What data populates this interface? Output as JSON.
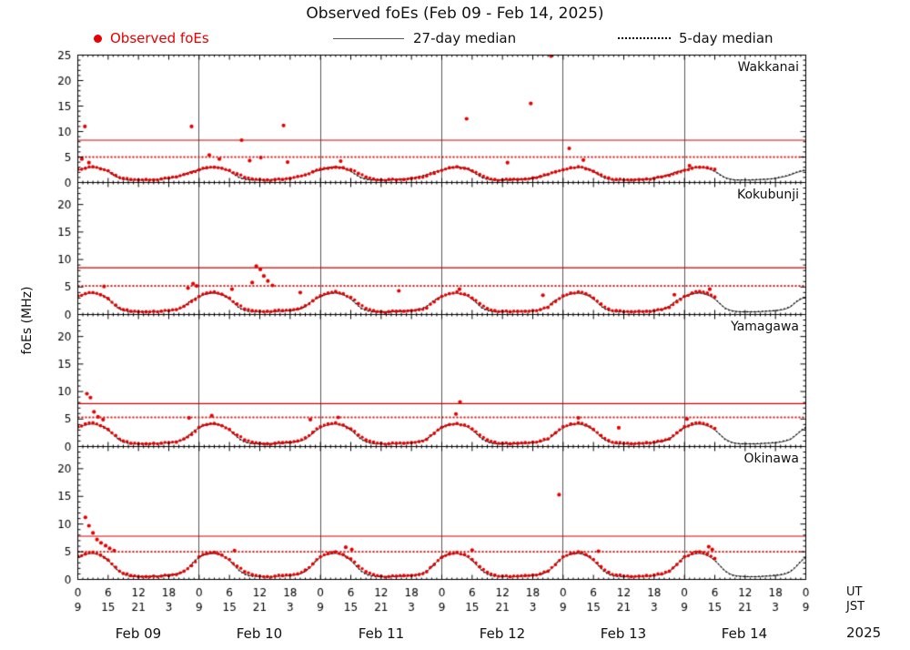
{
  "title": "Observed foEs (Feb 09 - Feb 14, 2025)",
  "ylabel": "foEs (MHz)",
  "legend": {
    "observed": "Observed foEs",
    "median27": "27-day median",
    "median5": "5-day median"
  },
  "axis": {
    "hours_total": 144,
    "ut_label": "UT",
    "jst_label": "JST",
    "year_label": "2025",
    "day_labels": [
      "Feb 09",
      "Feb 10",
      "Feb 11",
      "Feb 12",
      "Feb 13",
      "Feb 14"
    ],
    "x_tick_pairs": [
      [
        "0",
        "9"
      ],
      [
        "6",
        "15"
      ],
      [
        "12",
        "21"
      ],
      [
        "18",
        "3"
      ]
    ]
  },
  "colors": {
    "observed": "#e60000",
    "threshold": "#cc0000",
    "median27": "#444444",
    "median5": "#000000",
    "dayline": "#555555",
    "frame": "#000000"
  },
  "chart_data": {
    "type": "scatter",
    "title": "Observed foEs (Feb 09 - Feb 14, 2025)",
    "x_unit": "hours from Feb 09 00:00 UT",
    "y_unit": "MHz",
    "stations": [
      {
        "name": "Wakkanai",
        "ymax": 25,
        "yticks": [
          0,
          5,
          10,
          15,
          20,
          25
        ],
        "threshold_solid": 8.3,
        "threshold_dotted": 5.0,
        "median27_diurnal": [
          2.4,
          2.7,
          2.9,
          3.0,
          2.9,
          2.6,
          2.2,
          1.6,
          1.0,
          0.7,
          0.5,
          0.5,
          0.5,
          0.5,
          0.5,
          0.6,
          0.6,
          0.7,
          0.8,
          1.0,
          1.2,
          1.5,
          1.9,
          2.2
        ],
        "median5_diurnal": [
          2.5,
          2.8,
          3.0,
          3.1,
          3.0,
          2.7,
          2.2,
          1.5,
          0.9,
          0.6,
          0.5,
          0.5,
          0.5,
          0.5,
          0.6,
          0.6,
          0.7,
          0.7,
          0.9,
          1.1,
          1.3,
          1.6,
          2.0,
          2.3
        ],
        "observed": [
          0,
          2.6,
          1.5,
          2.8,
          3,
          3.1,
          4.5,
          2.7,
          6,
          2.3,
          7.5,
          1.4,
          9,
          0.8,
          10.5,
          0.6,
          12,
          0.5,
          13.5,
          0.6,
          15,
          0.5,
          16.5,
          0.7,
          18,
          0.9,
          19.5,
          1.1,
          21,
          1.6,
          22.5,
          2.0,
          24,
          2.5,
          25.5,
          2.9,
          27,
          3.0,
          28.5,
          2.8,
          30,
          2.4,
          31.5,
          1.7,
          33,
          1.0,
          34.5,
          0.7,
          36,
          0.6,
          37.5,
          0.5,
          39,
          0.6,
          40.5,
          0.6,
          42,
          0.8,
          43.5,
          1.2,
          45,
          1.5,
          46.5,
          2.1,
          48,
          2.6,
          49.5,
          2.8,
          51,
          3.0,
          52.5,
          2.9,
          54,
          2.5,
          55.5,
          1.8,
          57,
          1.1,
          58.5,
          0.7,
          60,
          0.5,
          61.5,
          0.6,
          63,
          0.5,
          64.5,
          0.6,
          66,
          0.8,
          67.5,
          1.0,
          69,
          1.3,
          70.5,
          1.8,
          72,
          2.4,
          73.5,
          2.9,
          75,
          3.1,
          76.5,
          2.8,
          78,
          2.3,
          79.5,
          1.6,
          81,
          0.9,
          82.5,
          0.6,
          84,
          0.5,
          85.5,
          0.6,
          87,
          0.6,
          88.5,
          0.7,
          90,
          0.9,
          91.5,
          1.2,
          93,
          1.6,
          94.5,
          2.1,
          96,
          2.5,
          97.5,
          2.9,
          99,
          3.1,
          100.5,
          2.7,
          102,
          2.2,
          103.5,
          1.5,
          105,
          0.9,
          106.5,
          0.6,
          108,
          0.5,
          109.5,
          0.5,
          111,
          0.6,
          112.5,
          0.7,
          114,
          0.8,
          115.5,
          1.1,
          117,
          1.4,
          118.5,
          1.9,
          120,
          2.4,
          121.5,
          2.8,
          123,
          3.0,
          124.5,
          2.9,
          126,
          2.6
        ],
        "spikes": [
          1.4,
          11.0,
          0.8,
          4.6,
          2.2,
          3.9,
          22.5,
          11.0,
          26,
          5.4,
          28,
          4.6,
          32.4,
          8.3,
          34,
          4.3,
          36.2,
          4.9,
          40.7,
          11.2,
          41.5,
          4.0,
          52,
          4.2,
          76.9,
          12.5,
          85,
          3.9,
          89.6,
          15.5,
          93.6,
          24.8,
          97.2,
          6.7,
          100,
          4.4,
          121,
          3.3
        ]
      },
      {
        "name": "Kokubunji",
        "ymax": 24,
        "yticks": [
          0,
          5,
          10,
          15,
          20
        ],
        "threshold_solid": 8.5,
        "threshold_dotted": 5.2,
        "median27_diurnal": [
          3.2,
          3.6,
          3.8,
          3.9,
          3.7,
          3.4,
          2.8,
          2.0,
          1.2,
          0.8,
          0.6,
          0.5,
          0.5,
          0.5,
          0.5,
          0.5,
          0.6,
          0.6,
          0.7,
          0.8,
          1.0,
          1.4,
          2.2,
          2.8
        ],
        "median5_diurnal": [
          3.3,
          3.7,
          3.9,
          4.0,
          3.8,
          3.5,
          2.9,
          2.0,
          1.1,
          0.7,
          0.5,
          0.5,
          0.5,
          0.5,
          0.5,
          0.6,
          0.6,
          0.7,
          0.7,
          0.9,
          1.1,
          1.5,
          2.3,
          2.9
        ],
        "observed": [
          0,
          3.4,
          1.5,
          3.8,
          3,
          4.0,
          4.5,
          3.6,
          6,
          2.9,
          7.5,
          1.7,
          9,
          0.9,
          10.5,
          0.6,
          12,
          0.5,
          13.5,
          0.5,
          15,
          0.6,
          16.5,
          0.6,
          18,
          0.7,
          19.5,
          0.9,
          21,
          1.5,
          22.5,
          2.4,
          24,
          3.3,
          25.5,
          3.9,
          27,
          4.1,
          28.5,
          3.7,
          30,
          3.0,
          31.5,
          1.9,
          33,
          1.0,
          34.5,
          0.7,
          36,
          0.6,
          37.5,
          0.6,
          39,
          0.7,
          40.5,
          0.7,
          42,
          0.8,
          43.5,
          1.0,
          45,
          1.6,
          46.5,
          2.5,
          48,
          3.4,
          49.5,
          3.9,
          51,
          4.2,
          52.5,
          3.8,
          54,
          3.1,
          55.5,
          2.0,
          57,
          1.1,
          58.5,
          0.7,
          60,
          0.5,
          61.5,
          0.5,
          63,
          0.6,
          64.5,
          0.6,
          66,
          0.7,
          67.5,
          0.9,
          69,
          1.2,
          70.5,
          2.3,
          72,
          3.3,
          73.5,
          3.8,
          75,
          4.1,
          76.5,
          3.7,
          78,
          3.0,
          79.5,
          2.0,
          81,
          1.1,
          82.5,
          0.7,
          84,
          0.6,
          85.5,
          0.5,
          87,
          0.6,
          88.5,
          0.6,
          90,
          0.7,
          91.5,
          0.9,
          93,
          1.3,
          94.5,
          2.4,
          96,
          3.4,
          97.5,
          3.9,
          99,
          4.1,
          100.5,
          3.8,
          102,
          3.0,
          103.5,
          1.9,
          105,
          1.0,
          106.5,
          0.7,
          108,
          0.5,
          109.5,
          0.5,
          111,
          0.6,
          112.5,
          0.6,
          114,
          0.7,
          115.5,
          0.9,
          117,
          1.3,
          118.5,
          2.3,
          120,
          3.3,
          121.5,
          3.9,
          123,
          4.2,
          124.5,
          3.9,
          126,
          3.2
        ],
        "spikes": [
          35.3,
          8.8,
          36.1,
          8.2,
          36.8,
          7.0,
          37.6,
          6.1,
          38.5,
          5.3,
          34.5,
          5.8,
          22.8,
          5.6,
          23.5,
          5.2,
          21.8,
          4.8,
          30.5,
          4.6,
          44,
          4.0,
          5.2,
          5.1,
          63.5,
          4.3,
          75.5,
          4.6,
          92,
          3.5,
          118,
          3.6,
          125,
          4.6
        ]
      },
      {
        "name": "Yamagawa",
        "ymax": 24,
        "yticks": [
          0,
          5,
          10,
          15,
          20
        ],
        "threshold_solid": 7.8,
        "threshold_dotted": 5.3,
        "median27_diurnal": [
          3.4,
          3.8,
          4.0,
          4.1,
          3.9,
          3.6,
          3.0,
          2.2,
          1.4,
          0.9,
          0.6,
          0.5,
          0.5,
          0.5,
          0.5,
          0.5,
          0.6,
          0.6,
          0.7,
          0.8,
          1.0,
          1.3,
          2.0,
          2.8
        ],
        "median5_diurnal": [
          3.5,
          3.9,
          4.1,
          4.2,
          4.0,
          3.7,
          3.1,
          2.2,
          1.3,
          0.8,
          0.6,
          0.5,
          0.5,
          0.5,
          0.5,
          0.6,
          0.6,
          0.7,
          0.7,
          0.9,
          1.1,
          1.4,
          2.1,
          2.9
        ],
        "observed": [
          0,
          3.6,
          1.5,
          4.1,
          3,
          4.3,
          4.5,
          3.8,
          6,
          3.1,
          7.5,
          2.0,
          9,
          1.0,
          10.5,
          0.6,
          12,
          0.5,
          13.5,
          0.5,
          15,
          0.6,
          16.5,
          0.6,
          18,
          0.7,
          19.5,
          0.8,
          21,
          1.4,
          22.5,
          2.2,
          24,
          3.5,
          25.5,
          4.0,
          27,
          4.2,
          28.5,
          3.8,
          30,
          3.1,
          31.5,
          2.1,
          33,
          1.2,
          34.5,
          0.8,
          36,
          0.6,
          37.5,
          0.5,
          39,
          0.6,
          40.5,
          0.7,
          42,
          0.8,
          43.5,
          1.0,
          45,
          1.6,
          46.5,
          2.6,
          48,
          3.6,
          49.5,
          4.1,
          51,
          4.3,
          52.5,
          3.9,
          54,
          3.2,
          55.5,
          2.1,
          57,
          1.2,
          58.5,
          0.8,
          60,
          0.6,
          61.5,
          0.5,
          63,
          0.6,
          64.5,
          0.6,
          66,
          0.7,
          67.5,
          0.9,
          69,
          1.3,
          70.5,
          2.4,
          72,
          3.5,
          73.5,
          4.0,
          75,
          4.2,
          76.5,
          3.9,
          78,
          3.2,
          79.5,
          2.1,
          81,
          1.2,
          82.5,
          0.8,
          84,
          0.6,
          85.5,
          0.5,
          87,
          0.6,
          88.5,
          0.7,
          90,
          0.8,
          91.5,
          1.0,
          93,
          1.4,
          94.5,
          2.5,
          96,
          3.6,
          97.5,
          4.1,
          99,
          4.3,
          100.5,
          3.9,
          102,
          3.1,
          103.5,
          2.0,
          105,
          1.1,
          106.5,
          0.7,
          108,
          0.6,
          109.5,
          0.5,
          111,
          0.6,
          112.5,
          0.7,
          114,
          0.8,
          115.5,
          1.0,
          117,
          1.4,
          118.5,
          2.5,
          120,
          3.6,
          121.5,
          4.1,
          123,
          4.3,
          124.5,
          4.0,
          126,
          3.3
        ],
        "spikes": [
          1.8,
          9.6,
          2.5,
          8.9,
          3.2,
          6.3,
          4.0,
          5.4,
          5.0,
          4.9,
          22,
          5.2,
          26.5,
          5.6,
          46,
          4.9,
          51.5,
          5.3,
          74.8,
          5.9,
          75.6,
          8.1,
          99,
          5.2,
          107,
          3.4,
          120.5,
          5.0
        ]
      },
      {
        "name": "Okinawa",
        "ymax": 24,
        "yticks": [
          0,
          5,
          10,
          15,
          20
        ],
        "threshold_solid": 7.8,
        "threshold_dotted": 5.0,
        "median27_diurnal": [
          4.0,
          4.4,
          4.6,
          4.7,
          4.5,
          4.1,
          3.4,
          2.5,
          1.6,
          1.0,
          0.7,
          0.6,
          0.5,
          0.5,
          0.5,
          0.5,
          0.6,
          0.6,
          0.7,
          0.8,
          1.0,
          1.4,
          2.2,
          3.2
        ],
        "median5_diurnal": [
          4.1,
          4.5,
          4.7,
          4.8,
          4.6,
          4.2,
          3.5,
          2.5,
          1.5,
          0.9,
          0.6,
          0.5,
          0.5,
          0.5,
          0.5,
          0.6,
          0.6,
          0.7,
          0.8,
          0.9,
          1.1,
          1.5,
          2.3,
          3.3
        ],
        "observed": [
          0,
          4.2,
          1.5,
          4.6,
          3,
          4.9,
          4.5,
          4.4,
          6,
          3.5,
          7.5,
          2.2,
          9,
          1.1,
          10.5,
          0.7,
          12,
          0.5,
          13.5,
          0.5,
          15,
          0.6,
          16.5,
          0.6,
          18,
          0.7,
          19.5,
          0.9,
          21,
          1.5,
          22.5,
          2.5,
          24,
          4.1,
          25.5,
          4.7,
          27,
          4.9,
          28.5,
          4.4,
          30,
          3.6,
          31.5,
          2.4,
          33,
          1.4,
          34.5,
          0.9,
          36,
          0.6,
          37.5,
          0.5,
          39,
          0.6,
          40.5,
          0.7,
          42,
          0.8,
          43.5,
          1.0,
          45,
          1.7,
          46.5,
          2.8,
          48,
          4.1,
          49.5,
          4.7,
          51,
          5.0,
          52.5,
          4.5,
          54,
          3.7,
          55.5,
          2.4,
          57,
          1.4,
          58.5,
          0.9,
          60,
          0.6,
          61.5,
          0.5,
          63,
          0.6,
          64.5,
          0.7,
          66,
          0.7,
          67.5,
          0.9,
          69,
          1.4,
          70.5,
          2.7,
          72,
          4.0,
          73.5,
          4.6,
          75,
          4.9,
          76.5,
          4.5,
          78,
          3.6,
          79.5,
          2.3,
          81,
          1.3,
          82.5,
          0.8,
          84,
          0.6,
          85.5,
          0.5,
          87,
          0.6,
          88.5,
          0.7,
          90,
          0.8,
          91.5,
          1.0,
          93,
          1.5,
          94.5,
          2.7,
          96,
          4.1,
          97.5,
          4.7,
          99,
          5.0,
          100.5,
          4.5,
          102,
          3.6,
          103.5,
          2.3,
          105,
          1.3,
          106.5,
          0.8,
          108,
          0.6,
          109.5,
          0.5,
          111,
          0.6,
          112.5,
          0.7,
          114,
          0.8,
          115.5,
          1.0,
          117,
          1.5,
          118.5,
          2.7,
          120,
          4.1,
          121.5,
          4.7,
          123,
          5.0,
          124.5,
          4.6,
          126,
          3.8
        ],
        "spikes": [
          1.5,
          11.2,
          2.2,
          9.7,
          3.0,
          8.4,
          3.8,
          7.2,
          4.6,
          6.6,
          5.5,
          6.1,
          6.3,
          5.6,
          7.2,
          5.2,
          31,
          5.2,
          53,
          5.8,
          54.2,
          5.4,
          78,
          5.3,
          95.2,
          15.3,
          103,
          5.1,
          124.8,
          5.9,
          125.5,
          5.4
        ]
      }
    ]
  }
}
